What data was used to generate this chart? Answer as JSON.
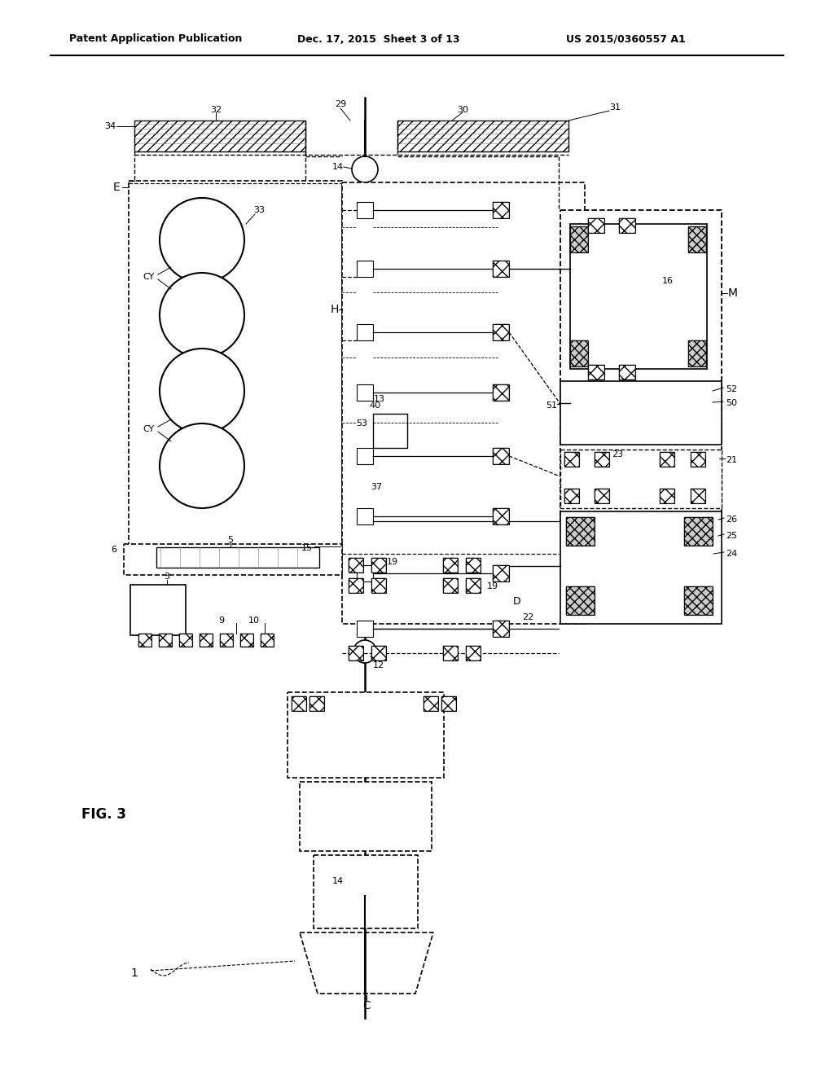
{
  "header_left": "Patent Application Publication",
  "header_mid": "Dec. 17, 2015  Sheet 3 of 13",
  "header_right": "US 2015/0360557 A1",
  "fig_label": "FIG. 3",
  "bg": "#ffffff",
  "lc": "#000000"
}
